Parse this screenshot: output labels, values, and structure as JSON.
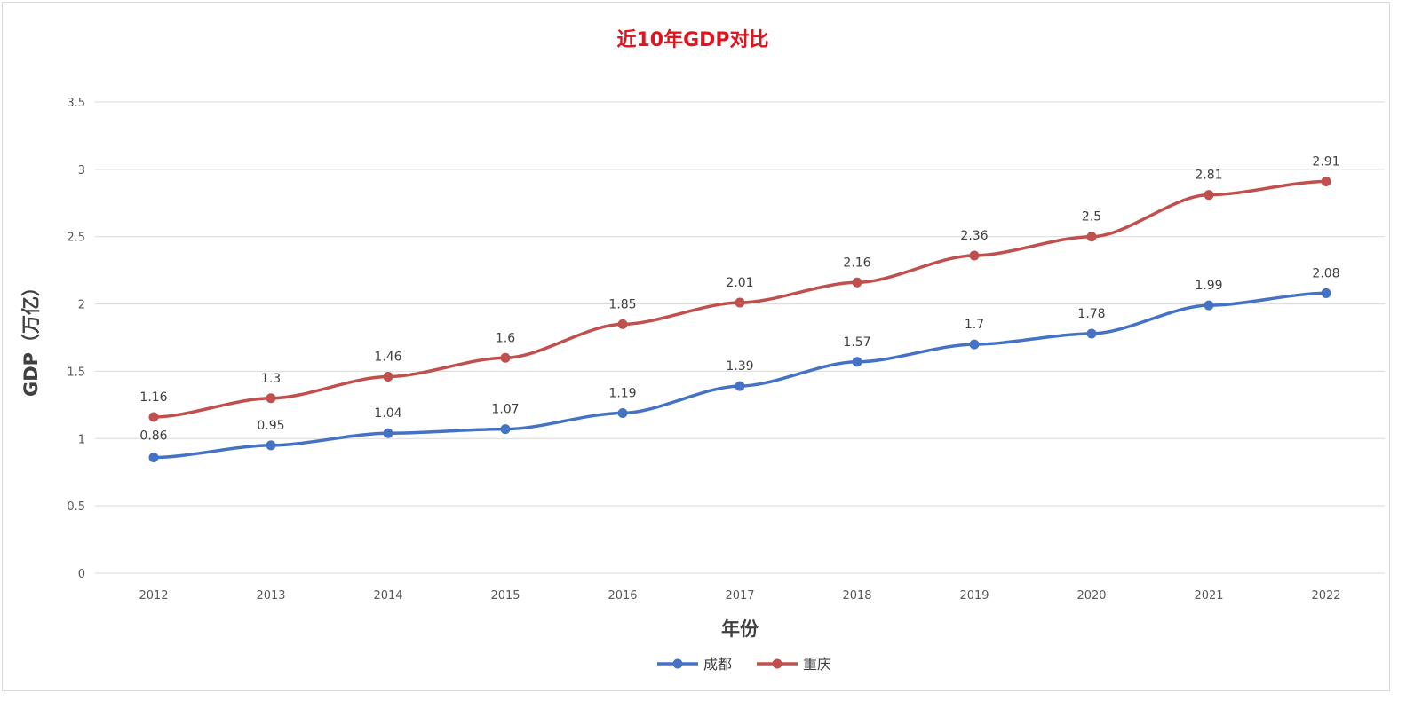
{
  "chart_data": {
    "type": "line",
    "title": "近10年GDP对比",
    "xlabel": "年份",
    "ylabel": "GDP（万亿）",
    "categories": [
      "2012",
      "2013",
      "2014",
      "2015",
      "2016",
      "2017",
      "2018",
      "2019",
      "2020",
      "2021",
      "2022"
    ],
    "ylim": [
      0,
      3.5
    ],
    "yticks": [
      "0",
      "0.5",
      "1",
      "1.5",
      "2",
      "2.5",
      "3",
      "3.5"
    ],
    "grid": true,
    "legend_position": "bottom",
    "series": [
      {
        "name": "成都",
        "color": "#4472c4",
        "values": [
          0.86,
          0.95,
          1.04,
          1.07,
          1.19,
          1.39,
          1.57,
          1.7,
          1.78,
          1.99,
          2.08
        ]
      },
      {
        "name": "重庆",
        "color": "#c0504d",
        "values": [
          1.16,
          1.3,
          1.46,
          1.6,
          1.85,
          2.01,
          2.16,
          2.36,
          2.5,
          2.81,
          2.91
        ]
      }
    ]
  }
}
